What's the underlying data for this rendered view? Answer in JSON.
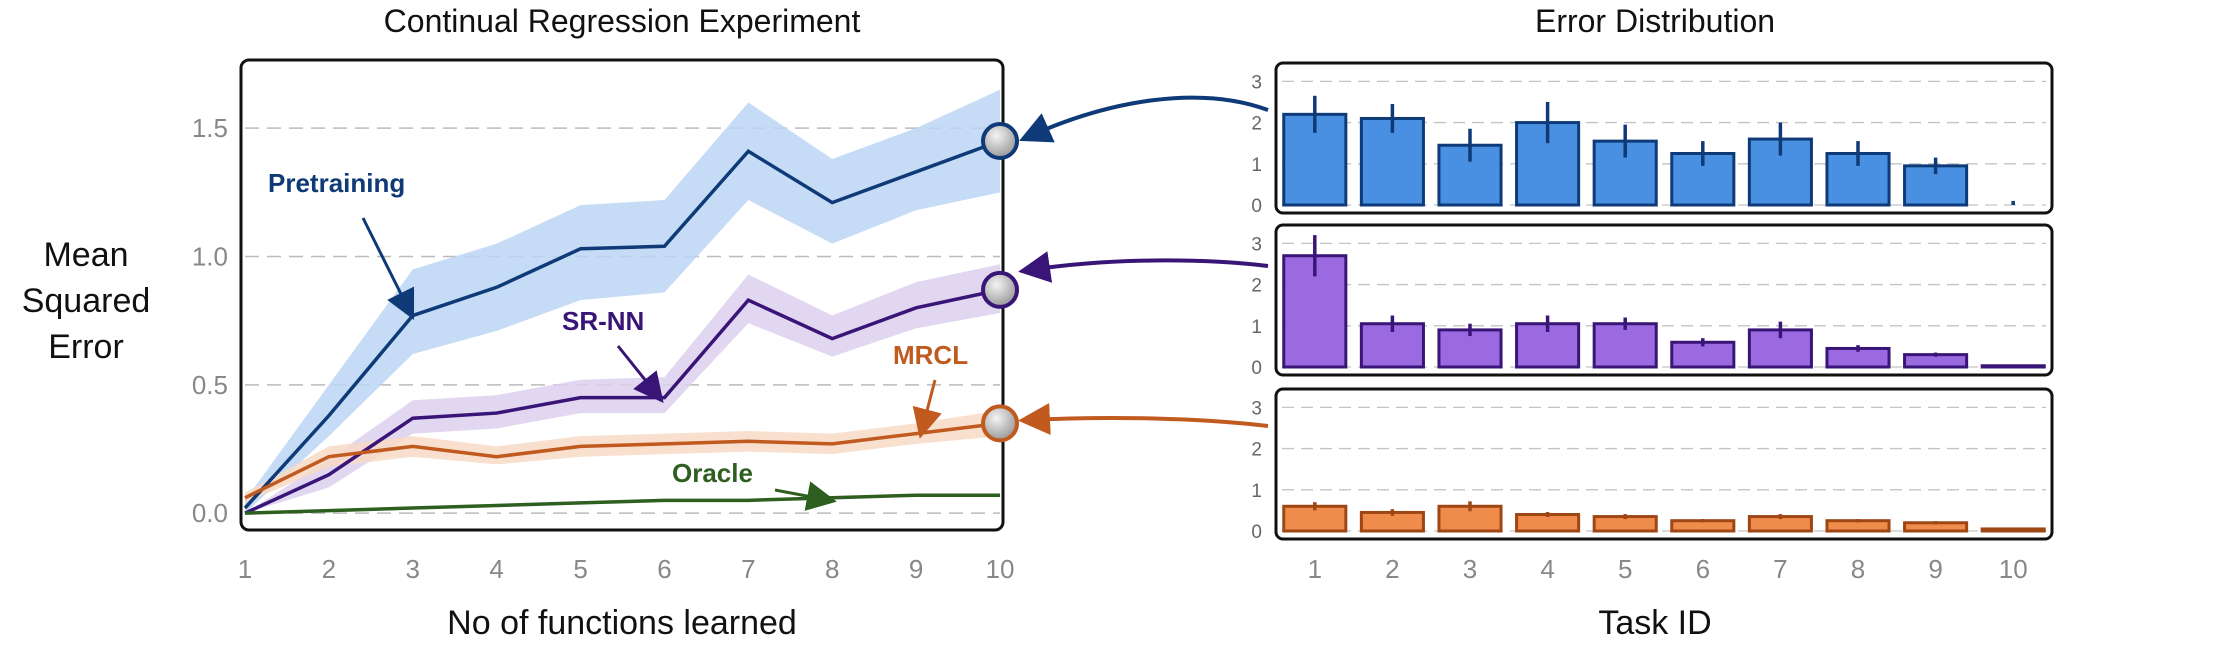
{
  "chart_data": [
    {
      "type": "line",
      "title": "Continual Regression Experiment",
      "xlabel": "No of functions learned",
      "ylabel": [
        "Mean",
        "Squared",
        "Error"
      ],
      "xlim": [
        1,
        10
      ],
      "ylim": [
        -0.05,
        1.75
      ],
      "x": [
        1,
        2,
        3,
        4,
        5,
        6,
        7,
        8,
        9,
        10
      ],
      "x_ticks": [
        "1",
        "2",
        "3",
        "4",
        "5",
        "6",
        "7",
        "8",
        "9",
        "10"
      ],
      "y_ticks": [
        "0.0",
        "0.5",
        "1.0",
        "1.5"
      ],
      "y_tick_values": [
        0.0,
        0.5,
        1.0,
        1.5
      ],
      "grid": "horizontal dashed",
      "series": [
        {
          "name": "Pretraining",
          "color": "#0e3a78",
          "band_color": "#bcd5f3",
          "values": [
            0.02,
            0.38,
            0.77,
            0.88,
            1.03,
            1.04,
            1.41,
            1.21,
            1.33,
            1.45
          ],
          "lower": [
            0.0,
            0.3,
            0.62,
            0.71,
            0.83,
            0.86,
            1.22,
            1.05,
            1.18,
            1.25
          ],
          "upper": [
            0.05,
            0.5,
            0.95,
            1.05,
            1.2,
            1.22,
            1.6,
            1.38,
            1.5,
            1.65
          ]
        },
        {
          "name": "SR-NN",
          "color": "#3a1578",
          "band_color": "#ddd0ef",
          "values": [
            0.0,
            0.15,
            0.37,
            0.39,
            0.45,
            0.45,
            0.83,
            0.68,
            0.8,
            0.87
          ],
          "lower": [
            0.0,
            0.1,
            0.31,
            0.33,
            0.39,
            0.39,
            0.74,
            0.61,
            0.72,
            0.78
          ],
          "upper": [
            0.0,
            0.21,
            0.44,
            0.46,
            0.52,
            0.53,
            0.93,
            0.77,
            0.9,
            0.97
          ]
        },
        {
          "name": "MRCL",
          "color": "#c05a1e",
          "band_color": "#f7d9c6",
          "values": [
            0.06,
            0.22,
            0.26,
            0.22,
            0.26,
            0.27,
            0.28,
            0.27,
            0.31,
            0.35
          ],
          "lower": [
            0.04,
            0.18,
            0.22,
            0.19,
            0.22,
            0.23,
            0.24,
            0.23,
            0.27,
            0.3
          ],
          "upper": [
            0.08,
            0.26,
            0.3,
            0.26,
            0.3,
            0.31,
            0.32,
            0.31,
            0.35,
            0.4
          ]
        },
        {
          "name": "Oracle",
          "color": "#2e5e20",
          "values": [
            0.0,
            0.01,
            0.02,
            0.03,
            0.04,
            0.05,
            0.05,
            0.06,
            0.07,
            0.07
          ]
        }
      ],
      "annotations": [
        "Pretraining",
        "SR-NN",
        "MRCL",
        "Oracle"
      ]
    },
    {
      "type": "bar",
      "title": "Error Distribution",
      "xlabel": "Task ID",
      "categories": [
        "1",
        "2",
        "3",
        "4",
        "5",
        "6",
        "7",
        "8",
        "9",
        "10"
      ],
      "y_ticks": [
        "0",
        "1",
        "2",
        "3"
      ],
      "y_tick_values": [
        0,
        1,
        2,
        3
      ],
      "ylim": [
        0,
        3.3
      ],
      "grid": "horizontal dashed",
      "panels": [
        {
          "name": "Pretraining",
          "fill": "#4a90e2",
          "edge": "#0e3a78",
          "values": [
            2.2,
            2.1,
            1.45,
            2.0,
            1.55,
            1.25,
            1.6,
            1.25,
            0.95,
            0.0
          ],
          "errors": [
            0.45,
            0.35,
            0.4,
            0.5,
            0.4,
            0.3,
            0.4,
            0.3,
            0.2,
            0.1
          ]
        },
        {
          "name": "SR-NN",
          "fill": "#9b6ae0",
          "edge": "#3a1578",
          "values": [
            2.7,
            1.05,
            0.9,
            1.05,
            1.05,
            0.6,
            0.9,
            0.45,
            0.3,
            0.03
          ],
          "errors": [
            0.5,
            0.2,
            0.15,
            0.2,
            0.15,
            0.1,
            0.2,
            0.08,
            0.05,
            0.0
          ]
        },
        {
          "name": "MRCL",
          "fill": "#ef8c4c",
          "edge": "#9e4715",
          "values": [
            0.6,
            0.45,
            0.6,
            0.4,
            0.35,
            0.25,
            0.35,
            0.25,
            0.2,
            0.05
          ],
          "errors": [
            0.1,
            0.08,
            0.12,
            0.06,
            0.06,
            0.04,
            0.06,
            0.04,
            0.04,
            0.0
          ]
        }
      ]
    }
  ]
}
